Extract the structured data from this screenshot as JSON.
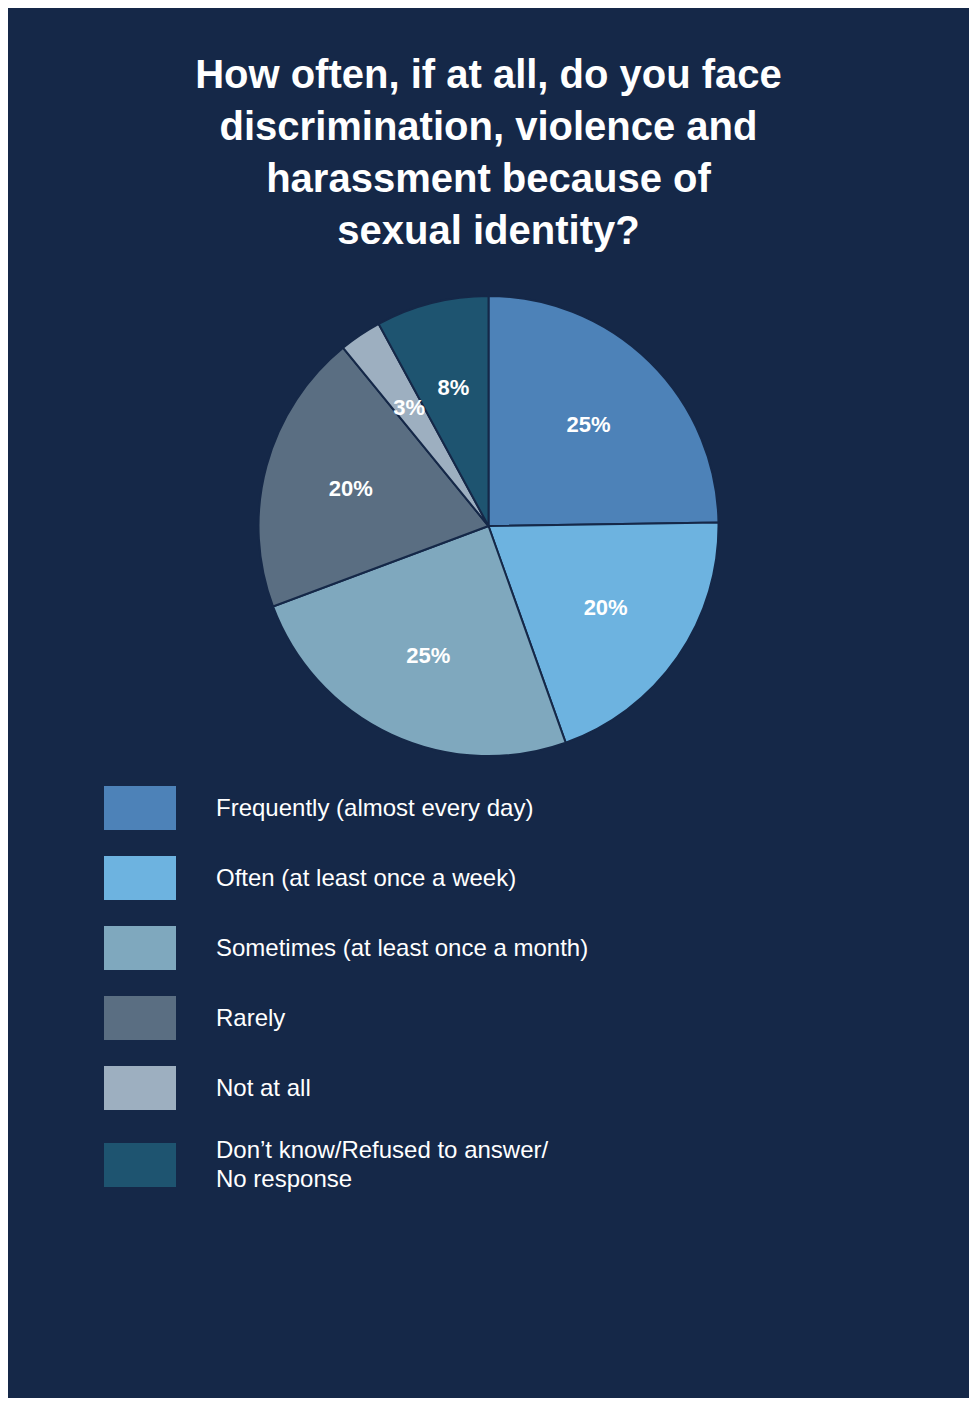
{
  "chart_data": {
    "type": "pie",
    "title": "How often, if at all, do you face\ndiscrimination, violence and\nharassment because of\nsexual identity?",
    "categories": [
      "Frequently (almost every day)",
      "Often (at least once a week)",
      "Sometimes (at least once a month)",
      "Rarely",
      "Not at all",
      "Don’t know/Refused to answer/\nNo response"
    ],
    "values": [
      25,
      20,
      25,
      20,
      3,
      8
    ],
    "value_labels": [
      "25%",
      "20%",
      "25%",
      "20%",
      "3%",
      "8%"
    ],
    "colors": [
      "#4d82b8",
      "#6db3e0",
      "#7fa8be",
      "#5a6e82",
      "#9dafc0",
      "#1e5470"
    ],
    "data_labels": true,
    "legend": "bottom"
  }
}
